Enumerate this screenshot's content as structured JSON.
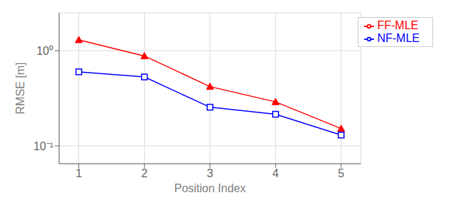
{
  "chart_data": {
    "type": "line",
    "x": [
      1,
      2,
      3,
      4,
      5
    ],
    "series": [
      {
        "name": "FF-MLE",
        "color": "#ff0000",
        "marker": "triangle",
        "values": [
          1.3,
          0.88,
          0.42,
          0.29,
          0.152
        ]
      },
      {
        "name": "NF-MLE",
        "color": "#0000ff",
        "marker": "square",
        "values": [
          0.6,
          0.53,
          0.255,
          0.215,
          0.13
        ]
      }
    ],
    "xlabel": "Position Index",
    "ylabel": "RMSE [m]",
    "xlim": [
      0.7,
      5.3
    ],
    "ylim": [
      0.065,
      2.5
    ],
    "xticks": [
      1,
      2,
      3,
      4,
      5
    ],
    "yticks": [
      {
        "value": 0.1,
        "label": "10⁻¹"
      },
      {
        "value": 1,
        "label": "10⁰"
      }
    ],
    "log": "y",
    "grid": true,
    "legend": "upper right"
  }
}
